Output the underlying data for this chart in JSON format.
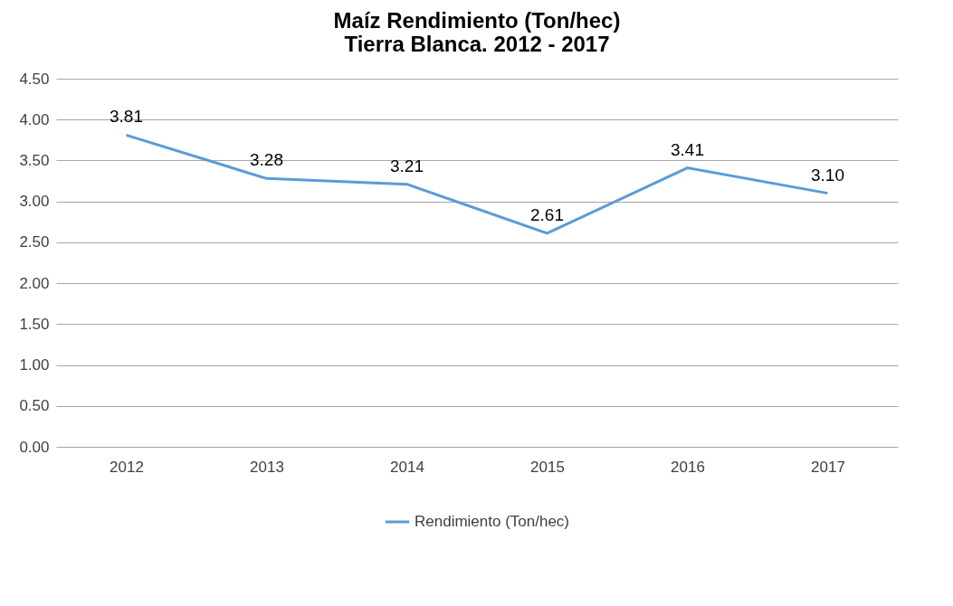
{
  "chart_data": {
    "type": "line",
    "title": "Maíz Rendimiento (Ton/hec)\nTierra Blanca. 2012 - 2017",
    "categories": [
      "2012",
      "2013",
      "2014",
      "2015",
      "2016",
      "2017"
    ],
    "series": [
      {
        "name": "Rendimiento (Ton/hec)",
        "color": "#5b9bd5",
        "values": [
          3.81,
          3.28,
          3.21,
          2.61,
          3.41,
          3.1
        ],
        "value_labels": [
          "3.81",
          "3.28",
          "3.21",
          "2.61",
          "3.41",
          "3.10"
        ]
      }
    ],
    "ylim": [
      0,
      4.5
    ],
    "yticks": [
      {
        "value": 0,
        "label": "0.00"
      },
      {
        "value": 0.5,
        "label": "0.50"
      },
      {
        "value": 1,
        "label": "1.00"
      },
      {
        "value": 1.5,
        "label": "1.50"
      },
      {
        "value": 2,
        "label": "2.00"
      },
      {
        "value": 2.5,
        "label": "2.50"
      },
      {
        "value": 3,
        "label": "3.00"
      },
      {
        "value": 3.5,
        "label": "3.50"
      },
      {
        "value": 4,
        "label": "4.00"
      },
      {
        "value": 4.5,
        "label": "4.50"
      }
    ],
    "grid": "y",
    "legend": "bottom",
    "marker": "none",
    "line_style": "solid"
  }
}
